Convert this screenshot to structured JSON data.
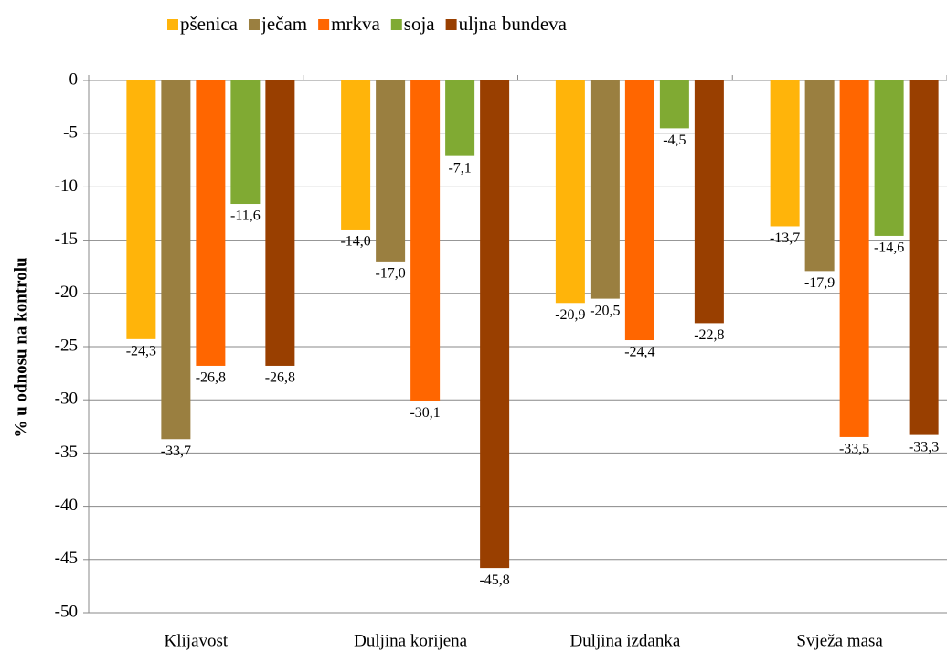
{
  "chart_data": {
    "type": "bar",
    "y_label": "% u odnosu na kontrolu",
    "categories": [
      "Klijavost",
      "Duljina korijena",
      "Duljina izdanka",
      "Svježa masa"
    ],
    "series": [
      {
        "name": "pšenica",
        "color": "#ffb40a",
        "values": [
          -24.3,
          -14.0,
          -20.9,
          -13.7
        ],
        "value_labels": [
          "-24,3",
          "-14,0",
          "-20,9",
          "-13,7"
        ]
      },
      {
        "name": "ječam",
        "color": "#9a7f40",
        "values": [
          -33.7,
          -17.0,
          -20.5,
          -17.9
        ],
        "value_labels": [
          "-33,7",
          "-17,0",
          "-20,5",
          "-17,9"
        ]
      },
      {
        "name": "mrkva",
        "color": "#ff6600",
        "values": [
          -26.8,
          -30.1,
          -24.4,
          -33.5
        ],
        "value_labels": [
          "-26,8",
          "-30,1",
          "-24,4",
          "-33,5"
        ]
      },
      {
        "name": "soja",
        "color": "#80aa33",
        "values": [
          -11.6,
          -7.1,
          -4.5,
          -14.6
        ],
        "value_labels": [
          "-11,6",
          "-7,1",
          "-4,5",
          "-14,6"
        ]
      },
      {
        "name": "uljna bundeva",
        "color": "#993f00",
        "values": [
          -26.8,
          -45.8,
          -22.8,
          -33.3
        ],
        "value_labels": [
          "-26,8",
          "-45,8",
          "-22,8",
          "-33,3"
        ]
      }
    ],
    "ylim": [
      -50,
      0
    ],
    "yticks": [
      0,
      -5,
      -10,
      -15,
      -20,
      -25,
      -30,
      -35,
      -40,
      -45,
      -50
    ],
    "grid": true,
    "legend": "top"
  }
}
